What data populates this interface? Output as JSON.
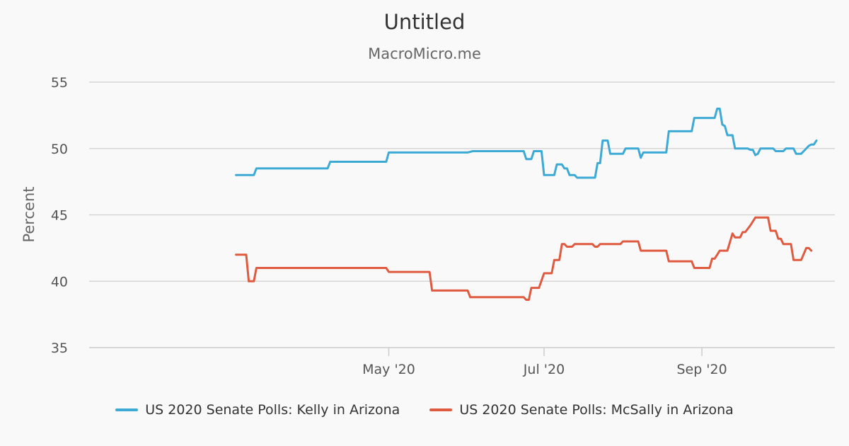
{
  "chart_data": {
    "type": "line",
    "title": "Untitled",
    "subtitle": "MacroMicro.me",
    "ylabel": "Percent",
    "xlabel": "",
    "ylim": [
      35,
      55
    ],
    "yticks": [
      35,
      40,
      45,
      50,
      55
    ],
    "xlim": [
      "2020-03-01",
      "2020-10-21"
    ],
    "xticks": [
      {
        "date": "2020-05-01",
        "label": "May '20"
      },
      {
        "date": "2020-07-01",
        "label": "Jul '20"
      },
      {
        "date": "2020-09-01",
        "label": "Sep '20"
      }
    ],
    "grid": true,
    "legend_position": "bottom",
    "series": [
      {
        "name": "US 2020 Senate Polls: Kelly in Arizona",
        "color": "#3daad6",
        "points": [
          [
            "2020-03-02",
            48.0
          ],
          [
            "2020-03-09",
            48.0
          ],
          [
            "2020-03-10",
            48.5
          ],
          [
            "2020-04-07",
            48.5
          ],
          [
            "2020-04-08",
            49.0
          ],
          [
            "2020-04-30",
            49.0
          ],
          [
            "2020-05-01",
            49.7
          ],
          [
            "2020-06-01",
            49.7
          ],
          [
            "2020-06-03",
            49.8
          ],
          [
            "2020-06-23",
            49.8
          ],
          [
            "2020-06-24",
            49.2
          ],
          [
            "2020-06-26",
            49.2
          ],
          [
            "2020-06-27",
            49.8
          ],
          [
            "2020-06-30",
            49.8
          ],
          [
            "2020-07-01",
            48.0
          ],
          [
            "2020-07-05",
            48.0
          ],
          [
            "2020-07-06",
            48.8
          ],
          [
            "2020-07-08",
            48.8
          ],
          [
            "2020-07-09",
            48.5
          ],
          [
            "2020-07-10",
            48.5
          ],
          [
            "2020-07-11",
            48.0
          ],
          [
            "2020-07-13",
            48.0
          ],
          [
            "2020-07-14",
            47.8
          ],
          [
            "2020-07-21",
            47.8
          ],
          [
            "2020-07-22",
            48.9
          ],
          [
            "2020-07-23",
            48.9
          ],
          [
            "2020-07-24",
            50.6
          ],
          [
            "2020-07-26",
            50.6
          ],
          [
            "2020-07-27",
            49.6
          ],
          [
            "2020-08-01",
            49.6
          ],
          [
            "2020-08-02",
            50.0
          ],
          [
            "2020-08-07",
            50.0
          ],
          [
            "2020-08-08",
            49.3
          ],
          [
            "2020-08-09",
            49.7
          ],
          [
            "2020-08-18",
            49.7
          ],
          [
            "2020-08-19",
            51.3
          ],
          [
            "2020-08-28",
            51.3
          ],
          [
            "2020-08-29",
            52.3
          ],
          [
            "2020-09-06",
            52.3
          ],
          [
            "2020-09-07",
            53.0
          ],
          [
            "2020-09-08",
            53.0
          ],
          [
            "2020-09-09",
            51.8
          ],
          [
            "2020-09-10",
            51.7
          ],
          [
            "2020-09-11",
            51.0
          ],
          [
            "2020-09-13",
            51.0
          ],
          [
            "2020-09-14",
            50.0
          ],
          [
            "2020-09-19",
            50.0
          ],
          [
            "2020-09-20",
            49.9
          ],
          [
            "2020-09-21",
            49.9
          ],
          [
            "2020-09-22",
            49.5
          ],
          [
            "2020-09-23",
            49.6
          ],
          [
            "2020-09-24",
            50.0
          ],
          [
            "2020-09-29",
            50.0
          ],
          [
            "2020-09-30",
            49.8
          ],
          [
            "2020-10-03",
            49.8
          ],
          [
            "2020-10-04",
            50.0
          ],
          [
            "2020-10-07",
            50.0
          ],
          [
            "2020-10-08",
            49.6
          ],
          [
            "2020-10-10",
            49.6
          ],
          [
            "2020-10-11",
            49.8
          ],
          [
            "2020-10-13",
            50.2
          ],
          [
            "2020-10-14",
            50.3
          ],
          [
            "2020-10-15",
            50.3
          ],
          [
            "2020-10-16",
            50.6
          ]
        ]
      },
      {
        "name": "US 2020 Senate Polls: McSally in Arizona",
        "color": "#e05a40",
        "points": [
          [
            "2020-03-02",
            42.0
          ],
          [
            "2020-03-06",
            42.0
          ],
          [
            "2020-03-07",
            40.0
          ],
          [
            "2020-03-09",
            40.0
          ],
          [
            "2020-03-10",
            41.0
          ],
          [
            "2020-04-30",
            41.0
          ],
          [
            "2020-05-01",
            40.7
          ],
          [
            "2020-05-17",
            40.7
          ],
          [
            "2020-05-18",
            39.3
          ],
          [
            "2020-06-01",
            39.3
          ],
          [
            "2020-06-02",
            38.8
          ],
          [
            "2020-06-23",
            38.8
          ],
          [
            "2020-06-24",
            38.6
          ],
          [
            "2020-06-25",
            38.6
          ],
          [
            "2020-06-26",
            39.5
          ],
          [
            "2020-06-29",
            39.5
          ],
          [
            "2020-07-01",
            40.6
          ],
          [
            "2020-07-04",
            40.6
          ],
          [
            "2020-07-05",
            41.6
          ],
          [
            "2020-07-07",
            41.6
          ],
          [
            "2020-07-08",
            42.8
          ],
          [
            "2020-07-09",
            42.8
          ],
          [
            "2020-07-10",
            42.6
          ],
          [
            "2020-07-12",
            42.6
          ],
          [
            "2020-07-13",
            42.8
          ],
          [
            "2020-07-20",
            42.8
          ],
          [
            "2020-07-21",
            42.6
          ],
          [
            "2020-07-22",
            42.6
          ],
          [
            "2020-07-23",
            42.8
          ],
          [
            "2020-07-31",
            42.8
          ],
          [
            "2020-08-01",
            43.0
          ],
          [
            "2020-08-07",
            43.0
          ],
          [
            "2020-08-08",
            42.3
          ],
          [
            "2020-08-18",
            42.3
          ],
          [
            "2020-08-19",
            41.5
          ],
          [
            "2020-08-28",
            41.5
          ],
          [
            "2020-08-29",
            41.0
          ],
          [
            "2020-09-04",
            41.0
          ],
          [
            "2020-09-05",
            41.7
          ],
          [
            "2020-09-06",
            41.7
          ],
          [
            "2020-09-07",
            42.0
          ],
          [
            "2020-09-08",
            42.3
          ],
          [
            "2020-09-11",
            42.3
          ],
          [
            "2020-09-13",
            43.6
          ],
          [
            "2020-09-14",
            43.3
          ],
          [
            "2020-09-16",
            43.3
          ],
          [
            "2020-09-17",
            43.7
          ],
          [
            "2020-09-18",
            43.7
          ],
          [
            "2020-09-20",
            44.2
          ],
          [
            "2020-09-22",
            44.8
          ],
          [
            "2020-09-27",
            44.8
          ],
          [
            "2020-09-28",
            43.8
          ],
          [
            "2020-09-30",
            43.8
          ],
          [
            "2020-10-01",
            43.2
          ],
          [
            "2020-10-02",
            43.2
          ],
          [
            "2020-10-03",
            42.8
          ],
          [
            "2020-10-06",
            42.8
          ],
          [
            "2020-10-07",
            41.6
          ],
          [
            "2020-10-10",
            41.6
          ],
          [
            "2020-10-12",
            42.5
          ],
          [
            "2020-10-13",
            42.5
          ],
          [
            "2020-10-14",
            42.3
          ]
        ]
      }
    ]
  }
}
